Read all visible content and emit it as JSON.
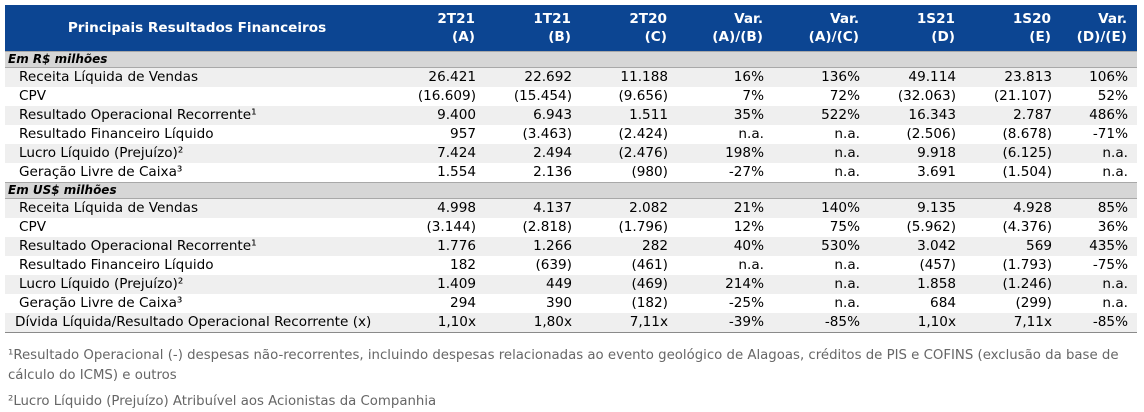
{
  "table": {
    "title": "Principais Resultados Financeiros",
    "columns": [
      {
        "line1": "2T21",
        "line2": "(A)"
      },
      {
        "line1": "1T21",
        "line2": "(B)"
      },
      {
        "line1": "2T20",
        "line2": "(C)"
      },
      {
        "line1": "Var.",
        "line2": "(A)/(B)"
      },
      {
        "line1": "Var.",
        "line2": "(A)/(C)"
      },
      {
        "line1": "1S21",
        "line2": "(D)"
      },
      {
        "line1": "1S20",
        "line2": "(E)"
      },
      {
        "line1": "Var.",
        "line2": "(D)/(E)"
      }
    ],
    "sections": [
      {
        "title": "Em R$ milhões",
        "rows": [
          {
            "label": "Receita Líquida de Vendas",
            "values": [
              "26.421",
              "22.692",
              "11.188",
              "16%",
              "136%",
              "49.114",
              "23.813",
              "106%"
            ]
          },
          {
            "label": "CPV",
            "values": [
              "(16.609)",
              "(15.454)",
              "(9.656)",
              "7%",
              "72%",
              "(32.063)",
              "(21.107)",
              "52%"
            ]
          },
          {
            "label": "Resultado Operacional Recorrente¹",
            "values": [
              "9.400",
              "6.943",
              "1.511",
              "35%",
              "522%",
              "16.343",
              "2.787",
              "486%"
            ]
          },
          {
            "label": "Resultado Financeiro Líquido",
            "values": [
              "957",
              "(3.463)",
              "(2.424)",
              "n.a.",
              "n.a.",
              "(2.506)",
              "(8.678)",
              "-71%"
            ]
          },
          {
            "label": "Lucro Líquido (Prejuízo)²",
            "values": [
              "7.424",
              "2.494",
              "(2.476)",
              "198%",
              "n.a.",
              "9.918",
              "(6.125)",
              "n.a."
            ]
          },
          {
            "label": "Geração Livre de Caixa³",
            "values": [
              "1.554",
              "2.136",
              "(980)",
              "-27%",
              "n.a.",
              "3.691",
              "(1.504)",
              "n.a."
            ]
          }
        ]
      },
      {
        "title": "Em US$ milhões",
        "rows": [
          {
            "label": "Receita Líquida de Vendas",
            "values": [
              "4.998",
              "4.137",
              "2.082",
              "21%",
              "140%",
              "9.135",
              "4.928",
              "85%"
            ]
          },
          {
            "label": "CPV",
            "values": [
              "(3.144)",
              "(2.818)",
              "(1.796)",
              "12%",
              "75%",
              "(5.962)",
              "(4.376)",
              "36%"
            ]
          },
          {
            "label": "Resultado Operacional Recorrente¹",
            "values": [
              "1.776",
              "1.266",
              "282",
              "40%",
              "530%",
              "3.042",
              "569",
              "435%"
            ]
          },
          {
            "label": "Resultado Financeiro Líquido",
            "values": [
              "182",
              "(639)",
              "(461)",
              "n.a.",
              "n.a.",
              "(457)",
              "(1.793)",
              "-75%"
            ]
          },
          {
            "label": "Lucro Líquido (Prejuízo)²",
            "values": [
              "1.409",
              "449",
              "(469)",
              "214%",
              "n.a.",
              "1.858",
              "(1.246)",
              "n.a."
            ]
          },
          {
            "label": "Geração Livre de Caixa³",
            "values": [
              "294",
              "390",
              "(182)",
              "-25%",
              "n.a.",
              "684",
              "(299)",
              "n.a."
            ]
          },
          {
            "label": "Dívida Líquida/Resultado Operacional Recorrente (x)",
            "values": [
              "1,10x",
              "1,80x",
              "7,11x",
              "-39%",
              "-85%",
              "1,10x",
              "7,11x",
              "-85%"
            ]
          }
        ]
      }
    ]
  },
  "footnotes": {
    "note1": "¹Resultado Operacional (-) despesas não-recorrentes, incluindo despesas relacionadas ao evento geológico de Alagoas, créditos de PIS e COFINS (exclusão da base de cálculo do ICMS) e outros",
    "note2": "²Lucro Líquido (Prejuízo) Atribuível aos Acionistas da Companhia"
  },
  "colors": {
    "header_bg": "#0c4592",
    "section_bg": "#d6d6d6",
    "stripe_bg": "#efefef"
  }
}
